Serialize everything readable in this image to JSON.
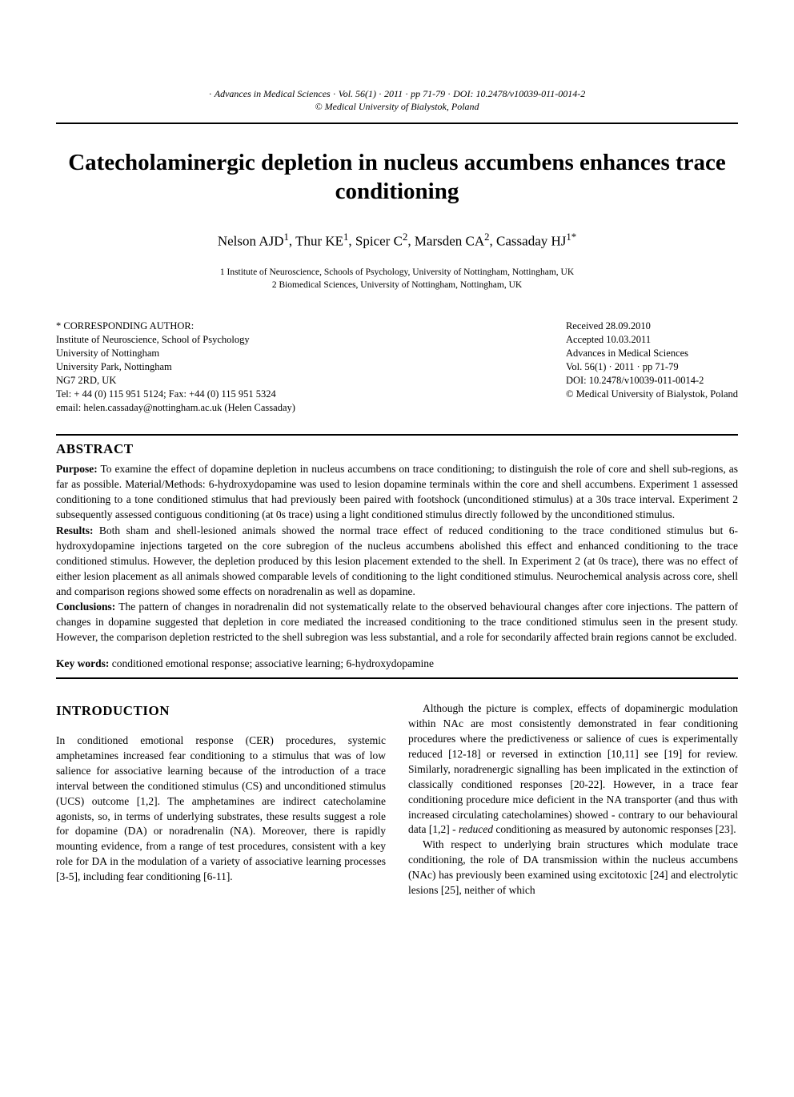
{
  "header": {
    "line1_prefix": "· ",
    "journal": "Advances in Medical Sciences",
    "vol": "Vol. 56(1)",
    "year": "2011",
    "pages": "pp 71-79",
    "doi": "DOI: 10.2478/v10039-011-0014-2",
    "copyright": "© Medical University of Bialystok, Poland"
  },
  "title": "Catecholaminergic depletion in nucleus accumbens enhances trace conditioning",
  "authors_html": "Nelson AJD<sup>1</sup>, Thur KE<sup>1</sup>, Spicer C<sup>2</sup>, Marsden CA<sup>2</sup>, Cassaday HJ<sup>1*</sup>",
  "affiliations": [
    "1 Institute of Neuroscience, Schools of Psychology, University of Nottingham, Nottingham, UK",
    "2 Biomedical Sciences, University of Nottingham, Nottingham, UK"
  ],
  "corr": {
    "heading": "* CORRESPONDING AUTHOR:",
    "lines": [
      "Institute of Neuroscience, School of Psychology",
      "University of Nottingham",
      "University Park, Nottingham",
      "NG7 2RD, UK",
      "Tel: + 44 (0) 115 951 5124; Fax: +44 (0) 115 951 5324",
      "email: helen.cassaday@nottingham.ac.uk (Helen Cassaday)"
    ]
  },
  "pubinfo": {
    "received": "Received 28.09.2010",
    "accepted": "Accepted 10.03.2011",
    "journal": "Advances in Medical Sciences",
    "volline": "Vol. 56(1) · 2011 · pp 71-79",
    "doi": "DOI: 10.2478/v10039-011-0014-2",
    "copyright": "© Medical University of Bialystok, Poland"
  },
  "abstract": {
    "heading": "ABSTRACT",
    "purpose_label": "Purpose:",
    "purpose": " To examine the effect of dopamine depletion in nucleus accumbens on trace conditioning; to distinguish the role of core and shell sub-regions, as far as possible. Material/Methods: 6-hydroxydopamine was used to lesion dopamine terminals within the core and shell accumbens. Experiment 1 assessed conditioning to a tone conditioned stimulus that had previously been paired with footshock (unconditioned stimulus) at a 30s trace interval. Experiment 2 subsequently assessed contiguous conditioning (at 0s trace) using a light conditioned stimulus directly followed by the unconditioned stimulus.",
    "results_label": "Results:",
    "results": " Both sham and shell-lesioned animals showed the normal trace effect of reduced conditioning to the trace conditioned stimulus but 6-hydroxydopamine injections targeted on the core subregion of the nucleus accumbens abolished this effect and enhanced conditioning to the trace conditioned stimulus. However, the depletion produced by this lesion placement extended to the shell. In Experiment 2 (at 0s trace), there was no effect of either lesion placement as all animals showed comparable levels of conditioning to the light conditioned stimulus. Neurochemical analysis across core, shell and comparison regions showed some effects on noradrenalin as well as dopamine.",
    "conclusions_label": "Conclusions:",
    "conclusions": " The pattern of changes in noradrenalin did not systematically relate to the observed behavioural changes after core injections. The pattern of changes in dopamine suggested that depletion in core mediated the increased conditioning to the trace conditioned stimulus seen in the present study. However, the comparison depletion restricted to the shell subregion was less substantial, and a role for secondarily affected brain regions cannot be excluded.",
    "keywords_label": "Key words:",
    "keywords": " conditioned emotional response; associative learning; 6-hydroxydopamine"
  },
  "intro": {
    "heading": "INTRODUCTION",
    "left_p1": "In conditioned emotional response (CER) procedures, systemic amphetamines increased fear conditioning to a stimulus that was of low salience for associative learning because of the introduction of a trace interval between the conditioned stimulus (CS) and unconditioned stimulus (UCS) outcome [1,2]. The amphetamines are indirect catecholamine agonists, so, in terms of underlying substrates, these results suggest a role for dopamine (DA) or noradrenalin (NA). Moreover, there is rapidly mounting evidence, from a range of test procedures, consistent with a key role for DA in the modulation of a variety of associative learning processes [3-5], including fear conditioning [6-11].",
    "right_p1_pre": "Although the picture is complex, effects of dopaminergic modulation within NAc are most consistently demonstrated in fear conditioning procedures where the predictiveness or salience of cues is experimentally reduced [12-18] or reversed in extinction [10,11] see [19] for review. Similarly, noradrenergic signalling has been implicated in the extinction of classically conditioned responses [20-22]. However, in a trace fear conditioning procedure mice deficient in the NA transporter (and thus with increased circulating catecholamines) showed - contrary to our behavioural data [1,2] - ",
    "right_p1_italic": "reduced",
    "right_p1_post": " conditioning as measured by autonomic responses [23].",
    "right_p2": "With respect to underlying brain structures which modulate trace conditioning, the role of DA transmission within the nucleus accumbens (NAc) has previously been examined using excitotoxic [24] and electrolytic lesions [25], neither of which"
  }
}
